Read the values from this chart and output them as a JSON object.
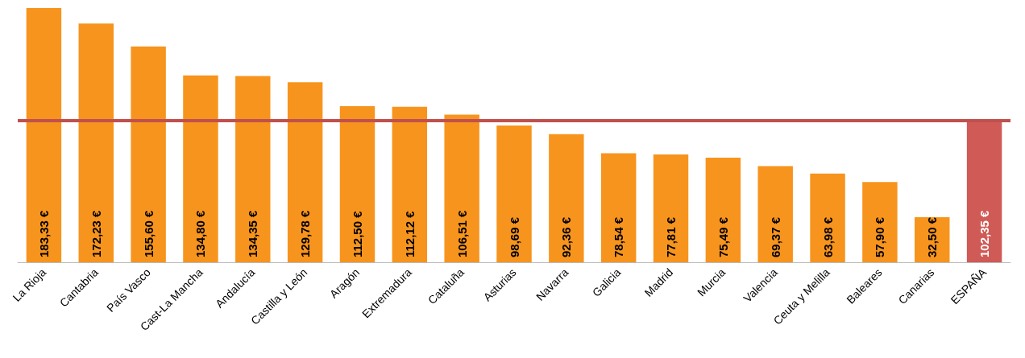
{
  "chart_data": {
    "type": "bar",
    "categories": [
      "La Rioja",
      "Cantabria",
      "País Vasco",
      "Cast-La Mancha",
      "Andalucía",
      "Castilla y León",
      "Aragón",
      "Extremadura",
      "Cataluña",
      "Asturias",
      "Navarra",
      "Galicia",
      "Madrid",
      "Murcia",
      "Valencia",
      "Ceuta y Melilla",
      "Baleares",
      "Canarias",
      "ESPAÑA"
    ],
    "values": [
      183.33,
      172.23,
      155.6,
      134.8,
      134.35,
      129.78,
      112.5,
      112.12,
      106.51,
      98.69,
      92.36,
      78.54,
      77.81,
      75.49,
      69.37,
      63.98,
      57.9,
      32.5,
      102.35
    ],
    "value_labels": [
      "183,33 €",
      "172,23 €",
      "155,60 €",
      "134,80 €",
      "134,35 €",
      "129,78 €",
      "112,50 €",
      "112,12 €",
      "106,51 €",
      "98,69 €",
      "92,36 €",
      "78,54 €",
      "77,81 €",
      "75,49 €",
      "69,37 €",
      "63,98 €",
      "57,90 €",
      "32,50 €",
      "102,35 €"
    ],
    "colors": [
      "#f7941d",
      "#f7941d",
      "#f7941d",
      "#f7941d",
      "#f7941d",
      "#f7941d",
      "#f7941d",
      "#f7941d",
      "#f7941d",
      "#f7941d",
      "#f7941d",
      "#f7941d",
      "#f7941d",
      "#f7941d",
      "#f7941d",
      "#f7941d",
      "#f7941d",
      "#f7941d",
      "#d05a56"
    ],
    "ref_lines": [
      {
        "axis": "y",
        "value": 102.35,
        "color": "#c0504d"
      }
    ]
  }
}
